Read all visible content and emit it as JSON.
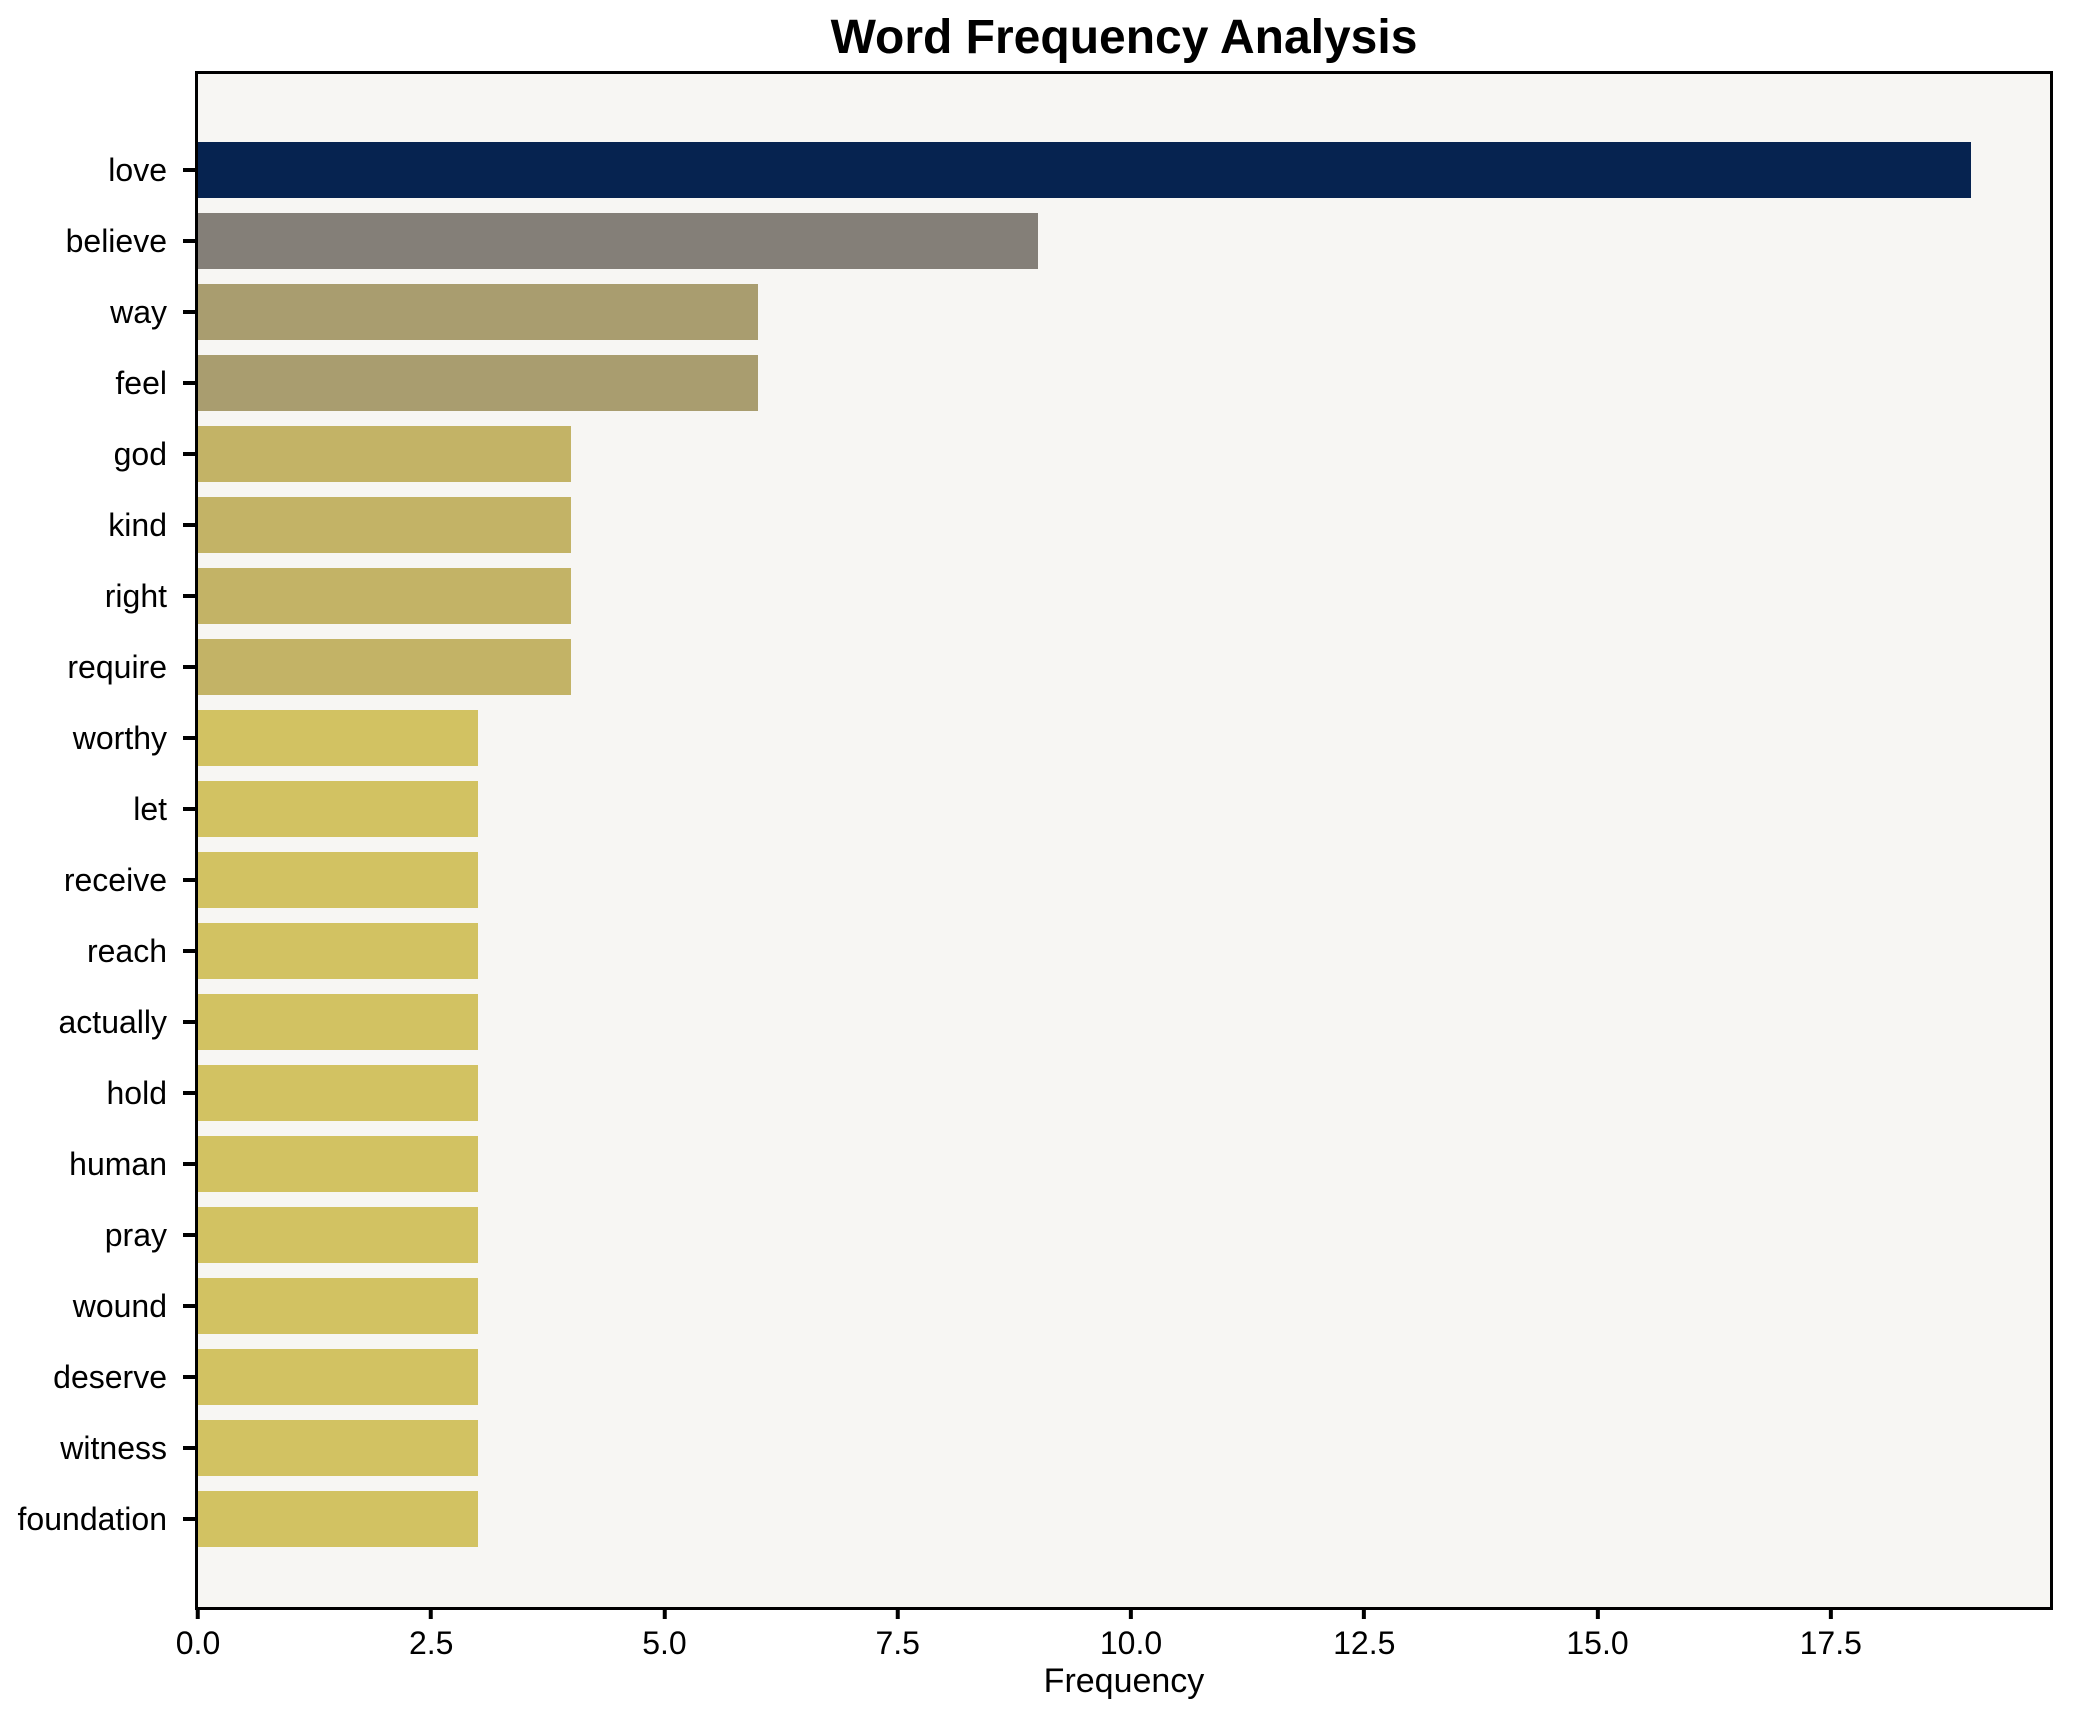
{
  "chart_data": {
    "type": "bar",
    "orientation": "horizontal",
    "title": "Word Frequency Analysis",
    "xlabel": "Frequency",
    "ylabel": "",
    "categories": [
      "love",
      "believe",
      "way",
      "feel",
      "god",
      "kind",
      "right",
      "require",
      "worthy",
      "let",
      "receive",
      "reach",
      "actually",
      "hold",
      "human",
      "pray",
      "wound",
      "deserve",
      "witness",
      "foundation"
    ],
    "values": [
      19,
      9,
      6,
      6,
      4,
      4,
      4,
      4,
      3,
      3,
      3,
      3,
      3,
      3,
      3,
      3,
      3,
      3,
      3,
      3
    ],
    "bar_colors": [
      "#062350",
      "#847f78",
      "#a99d6f",
      "#a99d6f",
      "#c3b366",
      "#c3b366",
      "#c3b366",
      "#c3b366",
      "#d2c262",
      "#d2c262",
      "#d2c262",
      "#d2c262",
      "#d2c262",
      "#d2c262",
      "#d2c262",
      "#d2c262",
      "#d2c262",
      "#d2c262",
      "#d2c262",
      "#d2c262"
    ],
    "xlim": [
      0,
      19.85
    ],
    "xtick_values": [
      0,
      2.5,
      5,
      7.5,
      10,
      12.5,
      15,
      17.5
    ],
    "xtick_labels": [
      "0.0",
      "2.5",
      "5.0",
      "7.5",
      "10.0",
      "12.5",
      "15.0",
      "17.5"
    ],
    "grid": false,
    "legend": "none",
    "colors": {
      "figure_bg": "#ffffff",
      "plot_bg": "#f7f6f3",
      "spine": "#000000",
      "text": "#000000"
    }
  }
}
